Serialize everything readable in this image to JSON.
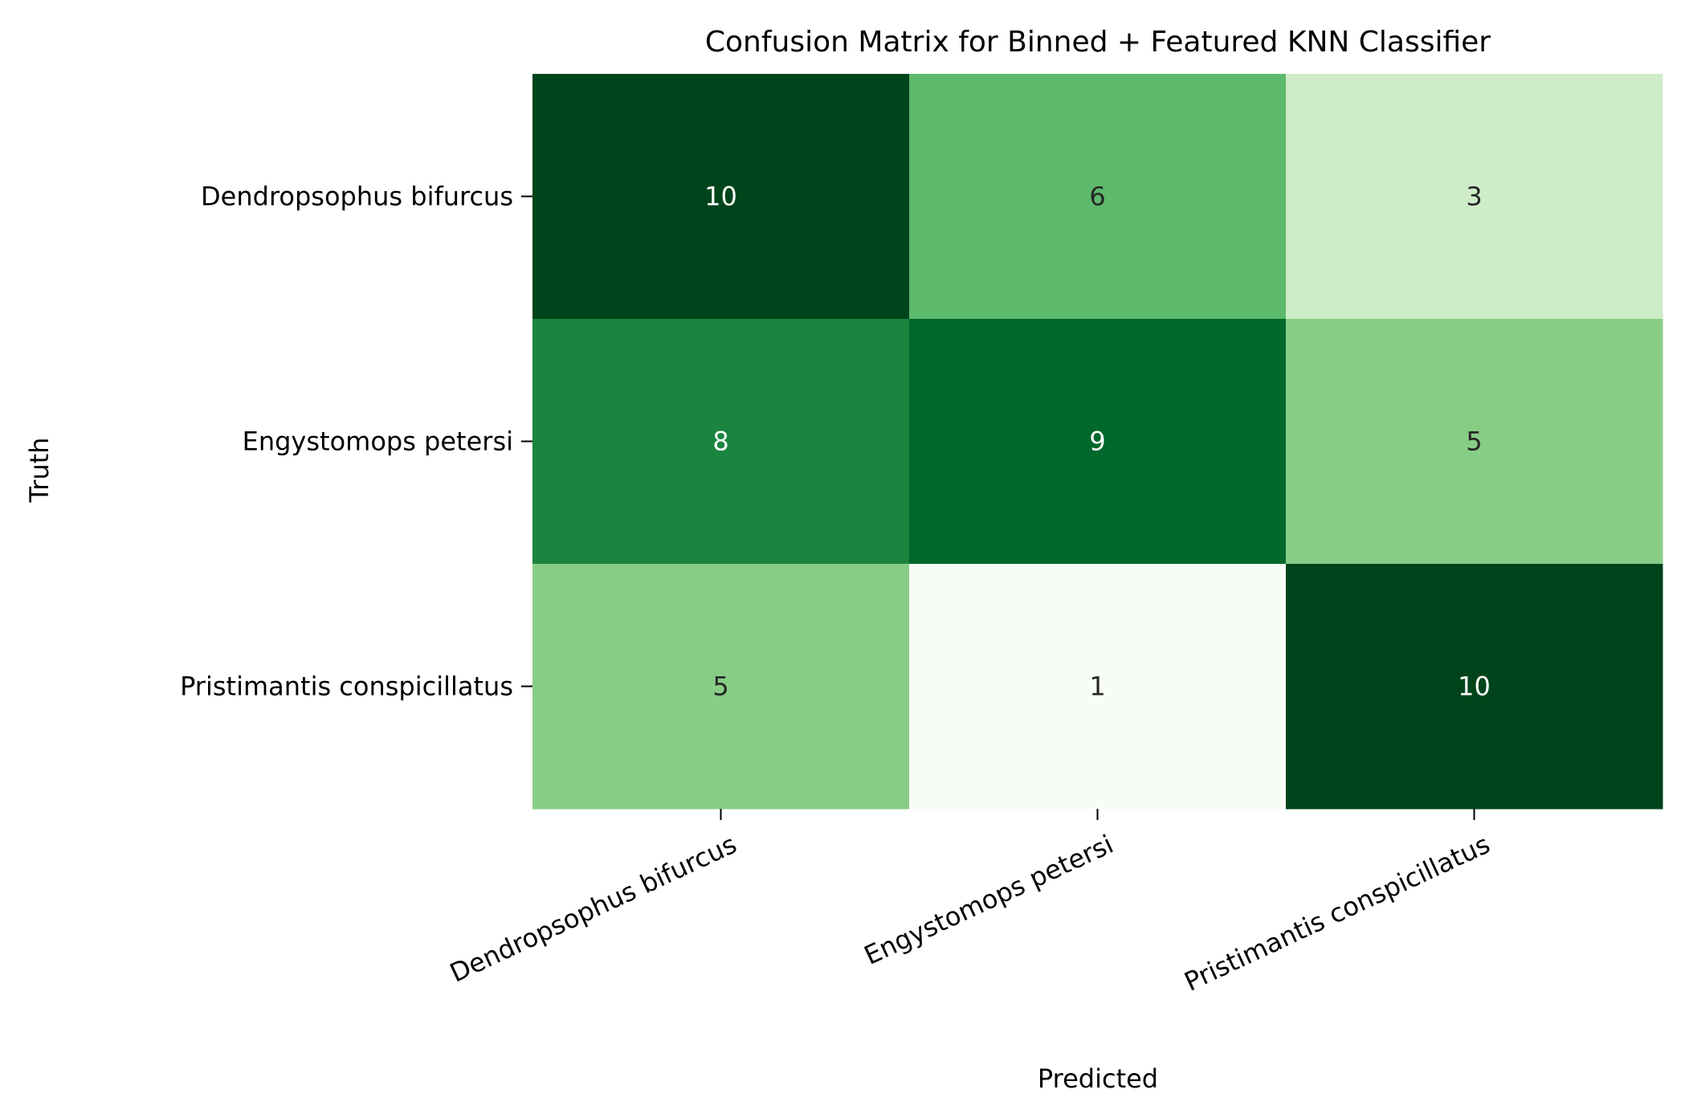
{
  "chart_data": {
    "type": "heatmap",
    "title": "Confusion Matrix for Binned + Featured KNN Classifier",
    "xlabel": "Predicted",
    "ylabel": "Truth",
    "x_categories": [
      "Dendropsophus bifurcus",
      "Engystomops petersi",
      "Pristimantis conspicillatus"
    ],
    "y_categories": [
      "Dendropsophus bifurcus",
      "Engystomops petersi",
      "Pristimantis conspicillatus"
    ],
    "values": [
      [
        10,
        6,
        3
      ],
      [
        8,
        9,
        5
      ],
      [
        5,
        1,
        10
      ]
    ],
    "colormap": "Greens",
    "vmin": 1,
    "vmax": 10,
    "colorbar": false,
    "grid": false,
    "annot": true
  }
}
